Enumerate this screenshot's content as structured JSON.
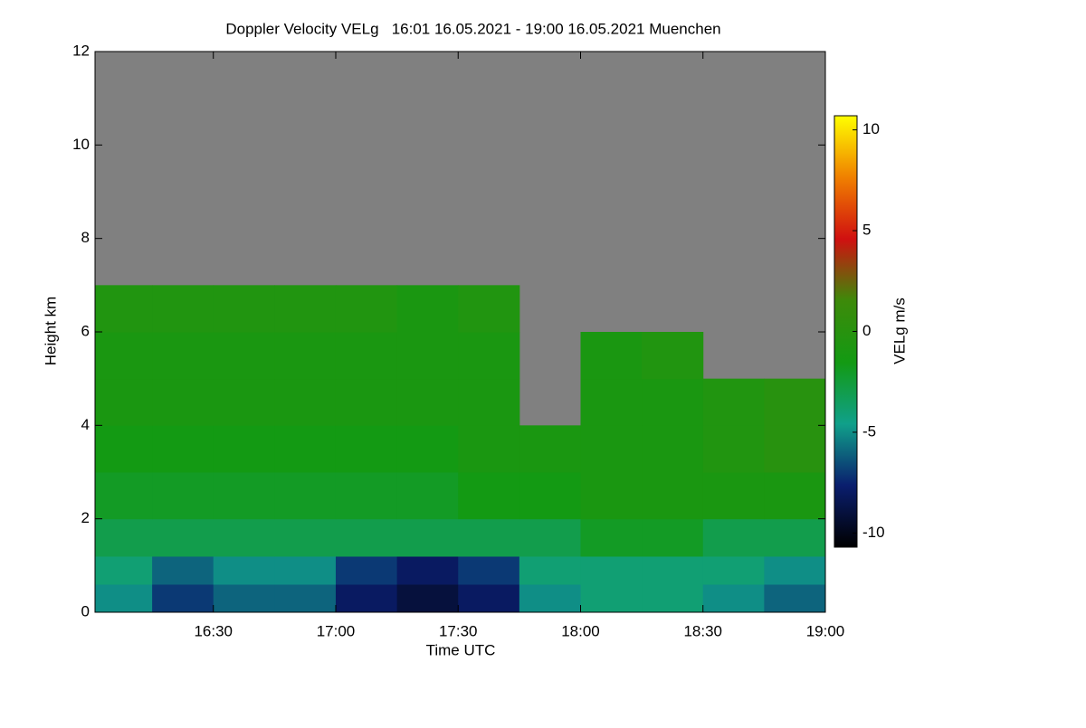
{
  "chart_data": {
    "type": "heatmap",
    "title": "Doppler Velocity VELg   16:01 16.05.2021 - 19:00 16.05.2021 Muenchen",
    "x_label": "Time UTC",
    "y_label": "Height km",
    "colorbar_label": "VELg m/s",
    "xbins": [
      16.0167,
      16.25,
      16.5,
      16.75,
      17.0,
      17.25,
      17.5,
      17.75,
      18.0,
      18.25,
      18.5,
      18.75,
      19.0
    ],
    "ybins": [
      0,
      0.6,
      1.2,
      2,
      3,
      4,
      5,
      6,
      7,
      12
    ],
    "z": [
      [
        -5,
        -7,
        -6,
        -6,
        -8,
        -9,
        -8,
        -5,
        -4,
        -4,
        -5,
        -6
      ],
      [
        -4,
        -6,
        -5,
        -5,
        -7,
        -8,
        -7,
        -4,
        -4,
        -4,
        -4,
        -5
      ],
      [
        -3,
        -3,
        -3,
        -3,
        -3,
        -3,
        -3,
        -3,
        -2,
        -2,
        -3,
        -3
      ],
      [
        -2,
        -2,
        -2,
        -2,
        -2,
        -2,
        -1.5,
        -1.5,
        -1,
        -1,
        -1,
        -1
      ],
      [
        -1.5,
        -1.5,
        -1.5,
        -1.5,
        -1.5,
        -1.5,
        -1,
        -1,
        -1,
        -1,
        -0.5,
        0
      ],
      [
        -1,
        -1,
        -1,
        -1,
        -1,
        -1,
        -1,
        null,
        -1,
        -1,
        -0.5,
        0
      ],
      [
        -1,
        -1,
        -1,
        -1,
        -1,
        -1,
        -1,
        null,
        -1,
        -0.5,
        null,
        null
      ],
      [
        -0.5,
        -0.5,
        -0.5,
        -0.5,
        -0.5,
        -1,
        -0.5,
        null,
        null,
        null,
        null,
        null
      ],
      [
        null,
        null,
        null,
        null,
        null,
        null,
        null,
        null,
        null,
        null,
        null,
        null
      ]
    ],
    "xlim": [
      16.0167,
      19.0
    ],
    "xticks": [
      {
        "value": 16.5,
        "label": "16:30"
      },
      {
        "value": 17.0,
        "label": "17:00"
      },
      {
        "value": 17.5,
        "label": "17:30"
      },
      {
        "value": 18.0,
        "label": "18:00"
      },
      {
        "value": 18.5,
        "label": "18:30"
      },
      {
        "value": 19.0,
        "label": "19:00"
      }
    ],
    "ylim": [
      0,
      12
    ],
    "yticks": [
      0,
      2,
      4,
      6,
      8,
      10,
      12
    ],
    "clim": [
      -10.7,
      10.7
    ],
    "cticks": [
      -10,
      -5,
      0,
      5,
      10
    ],
    "colormap": [
      "#000000",
      "#0a1e6e",
      "#10a08a",
      "#139a13",
      "#3d8a0a",
      "#d01010",
      "#f08000",
      "#ffff00"
    ],
    "missing_color": "#808080"
  }
}
